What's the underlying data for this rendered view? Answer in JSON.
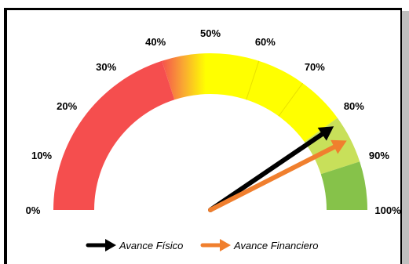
{
  "chart_data": {
    "type": "gauge",
    "title": "",
    "min": 0,
    "max": 100,
    "tick_labels": [
      "0%",
      "10%",
      "20%",
      "30%",
      "40%",
      "50%",
      "60%",
      "70%",
      "80%",
      "90%",
      "100%"
    ],
    "bands": [
      {
        "from": 0,
        "to": 40,
        "color": "#f54e4e"
      },
      {
        "from": 40,
        "to": 50,
        "color": "#f9a832"
      },
      {
        "from": 50,
        "to": 80,
        "color": "#ffff00"
      },
      {
        "from": 80,
        "to": 90,
        "color": "#c8e05a"
      },
      {
        "from": 90,
        "to": 100,
        "color": "#86c24a"
      }
    ],
    "series": [
      {
        "name": "Avance Físico",
        "value": 81,
        "color": "#000000"
      },
      {
        "name": "Avance Financiero",
        "value": 85,
        "color": "#f07f2e"
      }
    ],
    "legend": "bottom"
  }
}
